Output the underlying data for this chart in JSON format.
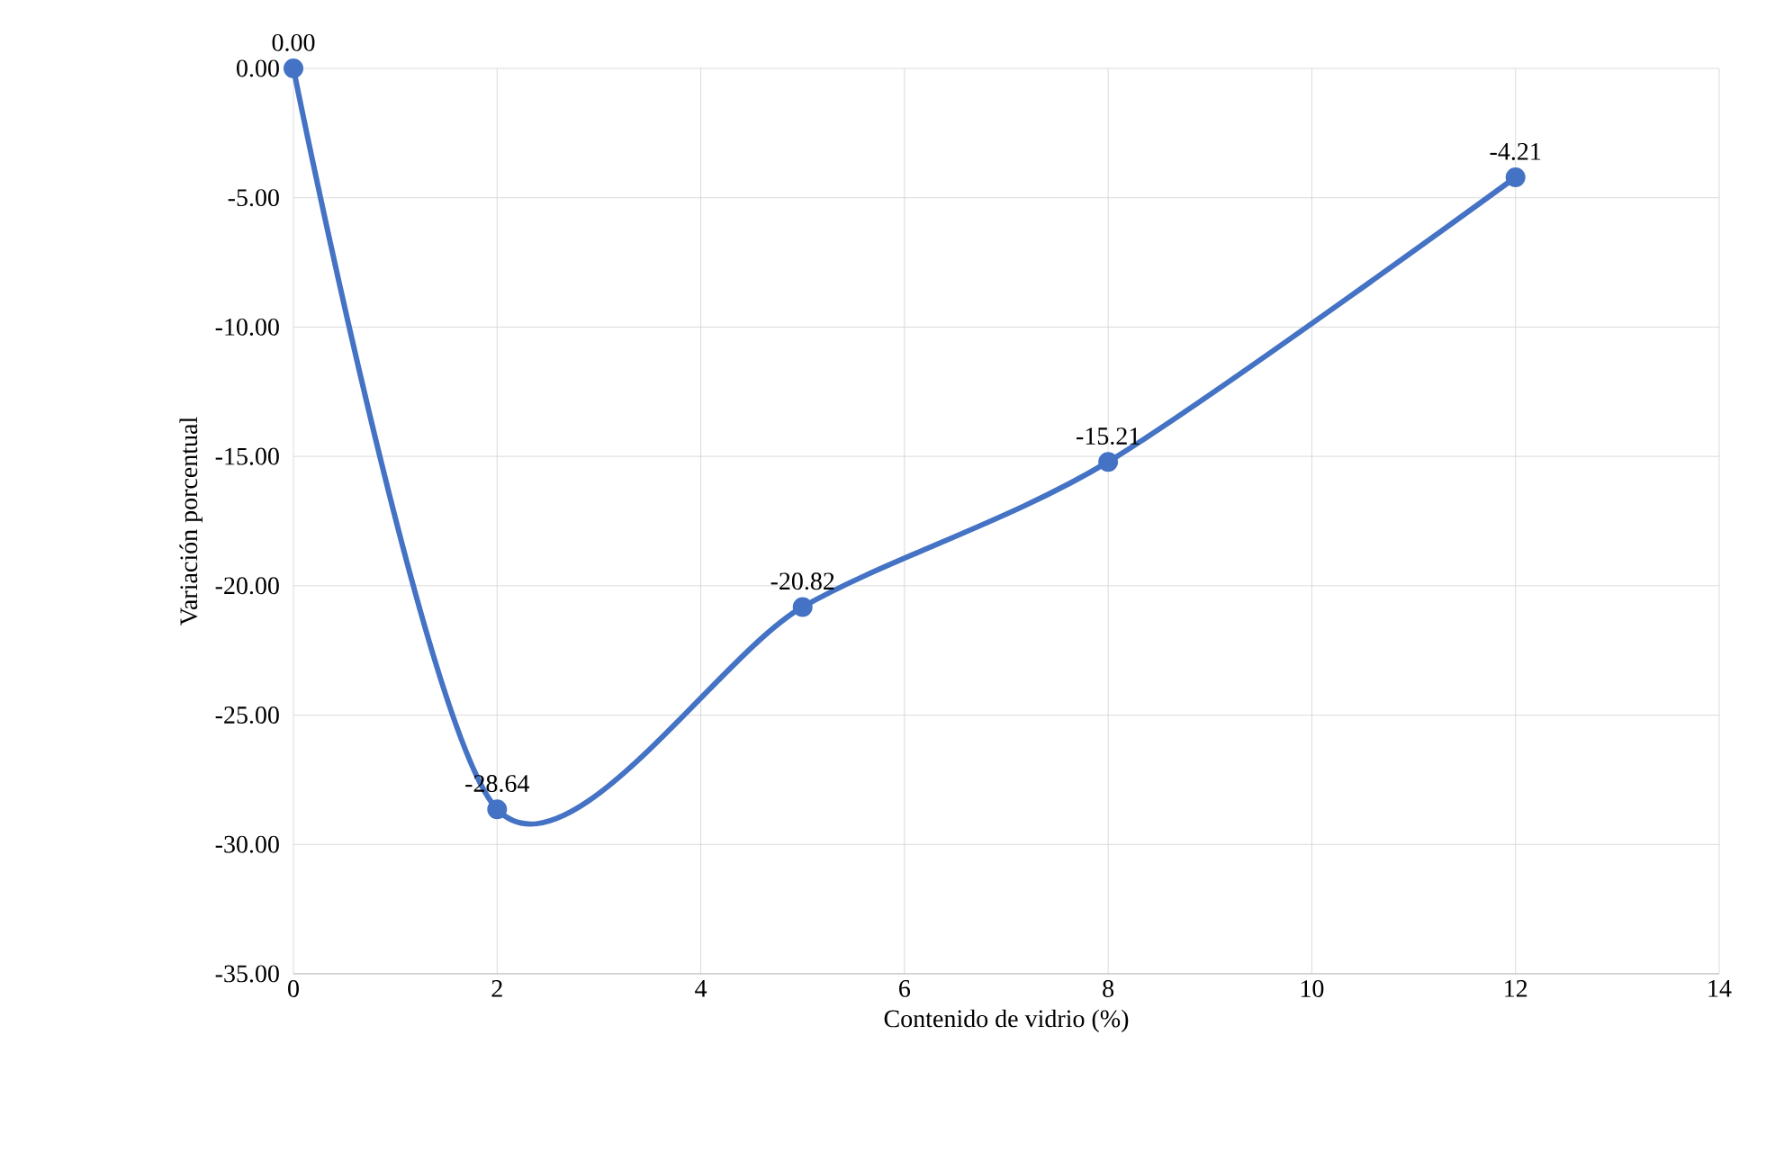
{
  "chart_data": {
    "type": "line",
    "xlabel": "Contenido de vidrio (%)",
    "ylabel": "Variación porcentual",
    "x": [
      0,
      2,
      5,
      8,
      12
    ],
    "series": [
      {
        "color": "#4472c4",
        "values": [
          0,
          -28.64,
          -20.82,
          -15.21,
          -4.21
        ],
        "value_labels": [
          "0.00",
          "-28.64",
          "-20.82",
          "-15.21",
          "-4.21"
        ]
      }
    ],
    "xlim": [
      0,
      14
    ],
    "xticks": [
      0,
      2,
      4,
      6,
      8,
      10,
      12,
      14
    ],
    "ylim": [
      -35,
      0
    ],
    "yticks": [
      {
        "value": -35,
        "label": "-35.00"
      },
      {
        "value": -30,
        "label": "-30.00"
      },
      {
        "value": -25,
        "label": "-25.00"
      },
      {
        "value": -20,
        "label": "-20.00"
      },
      {
        "value": -15,
        "label": "-15.00"
      },
      {
        "value": -10,
        "label": "-10.00"
      },
      {
        "value": -5,
        "label": "-5.00"
      },
      {
        "value": 0,
        "label": "0.00"
      }
    ],
    "grid": true,
    "marker": "circle",
    "line_style": "solid"
  }
}
